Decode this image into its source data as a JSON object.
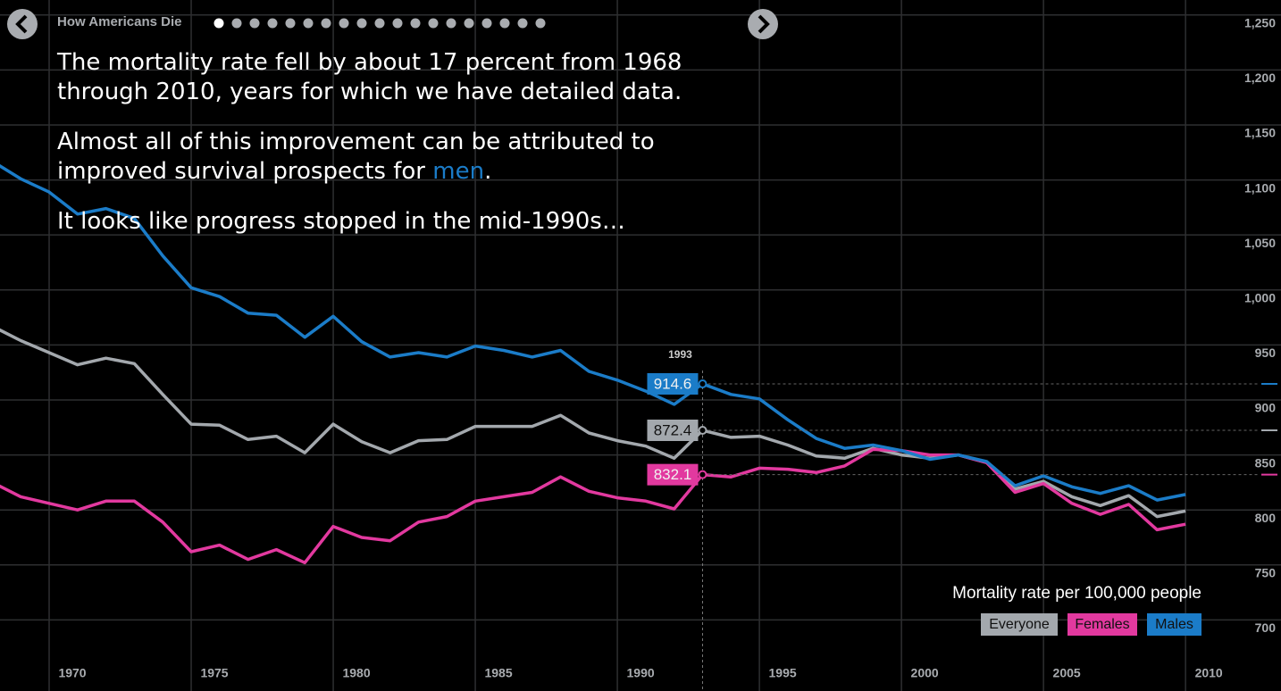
{
  "chart_data": {
    "type": "line",
    "title": "How Americans Die",
    "paragraphs": [
      [
        "The mortality rate fell by about 17 percent from 1968 through 2010, years for which we have detailed data."
      ],
      [
        "Almost all of this improvement can be attributed to improved survival prospects for ",
        "men",
        "."
      ],
      [
        "It looks like progress stopped in the mid-1990s…"
      ]
    ],
    "y_label": "Mortality rate per 100,000 people",
    "x": [
      1968,
      1969,
      1970,
      1971,
      1972,
      1973,
      1974,
      1975,
      1976,
      1977,
      1978,
      1979,
      1980,
      1981,
      1982,
      1983,
      1984,
      1985,
      1986,
      1987,
      1988,
      1989,
      1990,
      1991,
      1992,
      1993,
      1994,
      1995,
      1996,
      1997,
      1998,
      1999,
      2000,
      2001,
      2002,
      2003,
      2004,
      2005,
      2006,
      2007,
      2008,
      2009,
      2010
    ],
    "series": [
      {
        "name": "Everyone",
        "color": "#a3a8ad",
        "values": [
          967,
          954,
          943,
          932,
          938,
          933,
          905,
          878,
          877,
          864,
          867,
          852,
          878,
          862,
          852,
          863,
          864,
          876,
          876,
          876,
          886,
          870,
          863,
          858,
          847,
          872.4,
          866,
          867,
          859,
          849,
          847,
          856,
          850,
          847,
          850,
          843,
          819,
          826,
          812,
          804,
          813,
          794,
          799
        ]
      },
      {
        "name": "Females",
        "color": "#e2399f",
        "values": [
          825,
          812,
          806,
          800,
          808,
          808,
          789,
          762,
          768,
          755,
          764,
          752,
          785,
          775,
          772,
          789,
          794,
          808,
          812,
          816,
          830,
          817,
          811,
          808,
          801,
          832.1,
          830,
          838,
          837,
          834,
          840,
          855,
          854,
          850,
          850,
          843,
          816,
          824,
          806,
          796,
          805,
          782,
          787
        ]
      },
      {
        "name": "Males",
        "color": "#1b7cc8",
        "values": [
          1117,
          1101,
          1089,
          1069,
          1074,
          1065,
          1031,
          1002,
          994,
          979,
          977,
          957,
          976,
          953,
          939,
          943,
          939,
          949,
          945,
          939,
          945,
          926,
          918,
          908,
          896,
          914.6,
          905,
          901,
          882,
          865,
          856,
          859,
          854,
          846,
          850,
          844,
          822,
          831,
          821,
          815,
          822,
          809,
          814
        ]
      }
    ],
    "cursor_x": 1993,
    "xlim": [
      1968.27,
      2013.36
    ],
    "ylim": [
      635.4,
      1263.6
    ],
    "xticks": [
      1970,
      1975,
      1980,
      1985,
      1990,
      1995,
      2000,
      2005,
      2010
    ],
    "yticks": [
      700,
      750,
      800,
      850,
      900,
      950,
      {
        "value": 1000,
        "label": "1,000"
      },
      {
        "value": 1050,
        "label": "1,050"
      },
      {
        "value": 1100,
        "label": "1,100"
      },
      {
        "value": 1150,
        "label": "1,150"
      },
      {
        "value": 1200,
        "label": "1,200"
      },
      {
        "value": 1250,
        "label": "1,250"
      }
    ],
    "grid": true
  }
}
